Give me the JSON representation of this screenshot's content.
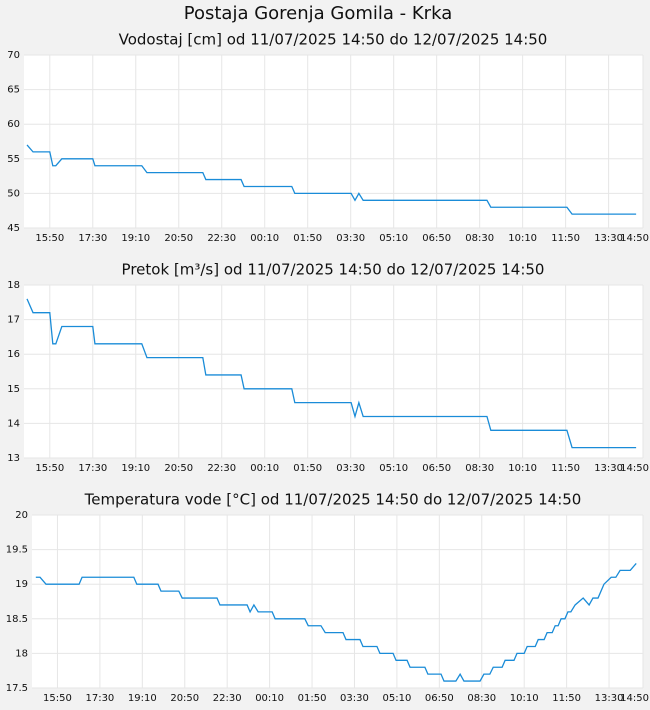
{
  "title": "Postaja Gorenja Gomila - Krka",
  "chart_data": [
    {
      "type": "line",
      "title": "Vodostaj [cm] od 11/07/2025 14:50 do 12/07/2025 14:50",
      "x": [
        7,
        21,
        60,
        67,
        74,
        88,
        160,
        165,
        274,
        286,
        416,
        423,
        505,
        512,
        623,
        630,
        761,
        770,
        779,
        789,
        1077,
        1086,
        1263,
        1275,
        1424
      ],
      "series": [
        {
          "name": "Vodostaj",
          "color": "#1a8cd8",
          "values": [
            57,
            56,
            56,
            54,
            54,
            55,
            55,
            54,
            54,
            53,
            53,
            52,
            52,
            51,
            51,
            50,
            50,
            49,
            50,
            49,
            49,
            48,
            48,
            47,
            47
          ]
        }
      ],
      "xlim": [
        0,
        1440
      ],
      "xticks": [
        {
          "value": 60,
          "label": "15:50"
        },
        {
          "value": 160,
          "label": "17:30"
        },
        {
          "value": 260,
          "label": "19:10"
        },
        {
          "value": 360,
          "label": "20:50"
        },
        {
          "value": 460,
          "label": "22:30"
        },
        {
          "value": 560,
          "label": "00:10"
        },
        {
          "value": 660,
          "label": "01:50"
        },
        {
          "value": 760,
          "label": "03:30"
        },
        {
          "value": 860,
          "label": "05:10"
        },
        {
          "value": 960,
          "label": "06:50"
        },
        {
          "value": 1060,
          "label": "08:30"
        },
        {
          "value": 1160,
          "label": "10:10"
        },
        {
          "value": 1260,
          "label": "11:50"
        },
        {
          "value": 1360,
          "label": "13:30"
        },
        {
          "value": 1440,
          "label": "14:50"
        }
      ],
      "ylim": [
        45,
        70
      ],
      "yticks": [
        45,
        50,
        55,
        60,
        65,
        70
      ],
      "grid": true
    },
    {
      "type": "line",
      "title": "Pretok [m³/s] od 11/07/2025 14:50 do 12/07/2025 14:50",
      "x": [
        7,
        21,
        60,
        67,
        74,
        88,
        160,
        165,
        274,
        286,
        416,
        423,
        505,
        512,
        623,
        630,
        761,
        770,
        779,
        789,
        1077,
        1086,
        1263,
        1275,
        1424
      ],
      "series": [
        {
          "name": "Pretok",
          "color": "#1a8cd8",
          "values": [
            17.6,
            17.2,
            17.2,
            16.3,
            16.3,
            16.8,
            16.8,
            16.3,
            16.3,
            15.9,
            15.9,
            15.4,
            15.4,
            15.0,
            15.0,
            14.6,
            14.6,
            14.2,
            14.6,
            14.2,
            14.2,
            13.8,
            13.8,
            13.3,
            13.3
          ]
        }
      ],
      "xlim": [
        0,
        1440
      ],
      "xticks": [
        {
          "value": 60,
          "label": "15:50"
        },
        {
          "value": 160,
          "label": "17:30"
        },
        {
          "value": 260,
          "label": "19:10"
        },
        {
          "value": 360,
          "label": "20:50"
        },
        {
          "value": 460,
          "label": "22:30"
        },
        {
          "value": 560,
          "label": "00:10"
        },
        {
          "value": 660,
          "label": "01:50"
        },
        {
          "value": 760,
          "label": "03:30"
        },
        {
          "value": 860,
          "label": "05:10"
        },
        {
          "value": 960,
          "label": "06:50"
        },
        {
          "value": 1060,
          "label": "08:30"
        },
        {
          "value": 1160,
          "label": "10:10"
        },
        {
          "value": 1260,
          "label": "11:50"
        },
        {
          "value": 1360,
          "label": "13:30"
        },
        {
          "value": 1440,
          "label": "14:50"
        }
      ],
      "ylim": [
        13,
        18
      ],
      "yticks": [
        13,
        14,
        15,
        16,
        17,
        18
      ],
      "grid": true
    },
    {
      "type": "line",
      "title": "Temperatura vode [°C] od 11/07/2025 14:50 do 12/07/2025 14:50",
      "x": [
        9,
        19,
        33,
        111,
        118,
        240,
        247,
        297,
        304,
        346,
        354,
        436,
        443,
        507,
        514,
        523,
        533,
        566,
        573,
        643,
        651,
        681,
        691,
        733,
        740,
        773,
        780,
        813,
        820,
        851,
        858,
        884,
        891,
        926,
        933,
        964,
        971,
        999,
        1009,
        1018,
        1056,
        1065,
        1079,
        1087,
        1108,
        1115,
        1136,
        1143,
        1160,
        1167,
        1186,
        1193,
        1207,
        1214,
        1226,
        1233,
        1240,
        1247,
        1256,
        1263,
        1270,
        1280,
        1299,
        1313,
        1322,
        1334,
        1348,
        1365,
        1376,
        1386,
        1410,
        1424
      ],
      "series": [
        {
          "name": "Temperatura vode",
          "color": "#1a8cd8",
          "values": [
            19.1,
            19.1,
            19.0,
            19.0,
            19.1,
            19.1,
            19.0,
            19.0,
            18.9,
            18.9,
            18.8,
            18.8,
            18.7,
            18.7,
            18.6,
            18.7,
            18.6,
            18.6,
            18.5,
            18.5,
            18.4,
            18.4,
            18.3,
            18.3,
            18.2,
            18.2,
            18.1,
            18.1,
            18.0,
            18.0,
            17.9,
            17.9,
            17.8,
            17.8,
            17.7,
            17.7,
            17.6,
            17.6,
            17.7,
            17.6,
            17.6,
            17.7,
            17.7,
            17.8,
            17.8,
            17.9,
            17.9,
            18.0,
            18.0,
            18.1,
            18.1,
            18.2,
            18.2,
            18.3,
            18.3,
            18.4,
            18.4,
            18.5,
            18.5,
            18.6,
            18.6,
            18.7,
            18.8,
            18.7,
            18.8,
            18.8,
            19.0,
            19.1,
            19.1,
            19.2,
            19.2,
            19.3
          ]
        }
      ],
      "xlim": [
        0,
        1440
      ],
      "xticks": [
        {
          "value": 60,
          "label": "15:50"
        },
        {
          "value": 160,
          "label": "17:30"
        },
        {
          "value": 260,
          "label": "19:10"
        },
        {
          "value": 360,
          "label": "20:50"
        },
        {
          "value": 460,
          "label": "22:30"
        },
        {
          "value": 560,
          "label": "00:10"
        },
        {
          "value": 660,
          "label": "01:50"
        },
        {
          "value": 760,
          "label": "03:30"
        },
        {
          "value": 860,
          "label": "05:10"
        },
        {
          "value": 960,
          "label": "06:50"
        },
        {
          "value": 1060,
          "label": "08:30"
        },
        {
          "value": 1160,
          "label": "10:10"
        },
        {
          "value": 1260,
          "label": "11:50"
        },
        {
          "value": 1360,
          "label": "13:30"
        },
        {
          "value": 1440,
          "label": "14:50"
        }
      ],
      "ylim": [
        17.5,
        20
      ],
      "yticks": [
        17.5,
        18,
        18.5,
        19,
        19.5,
        20
      ],
      "grid": true
    }
  ]
}
